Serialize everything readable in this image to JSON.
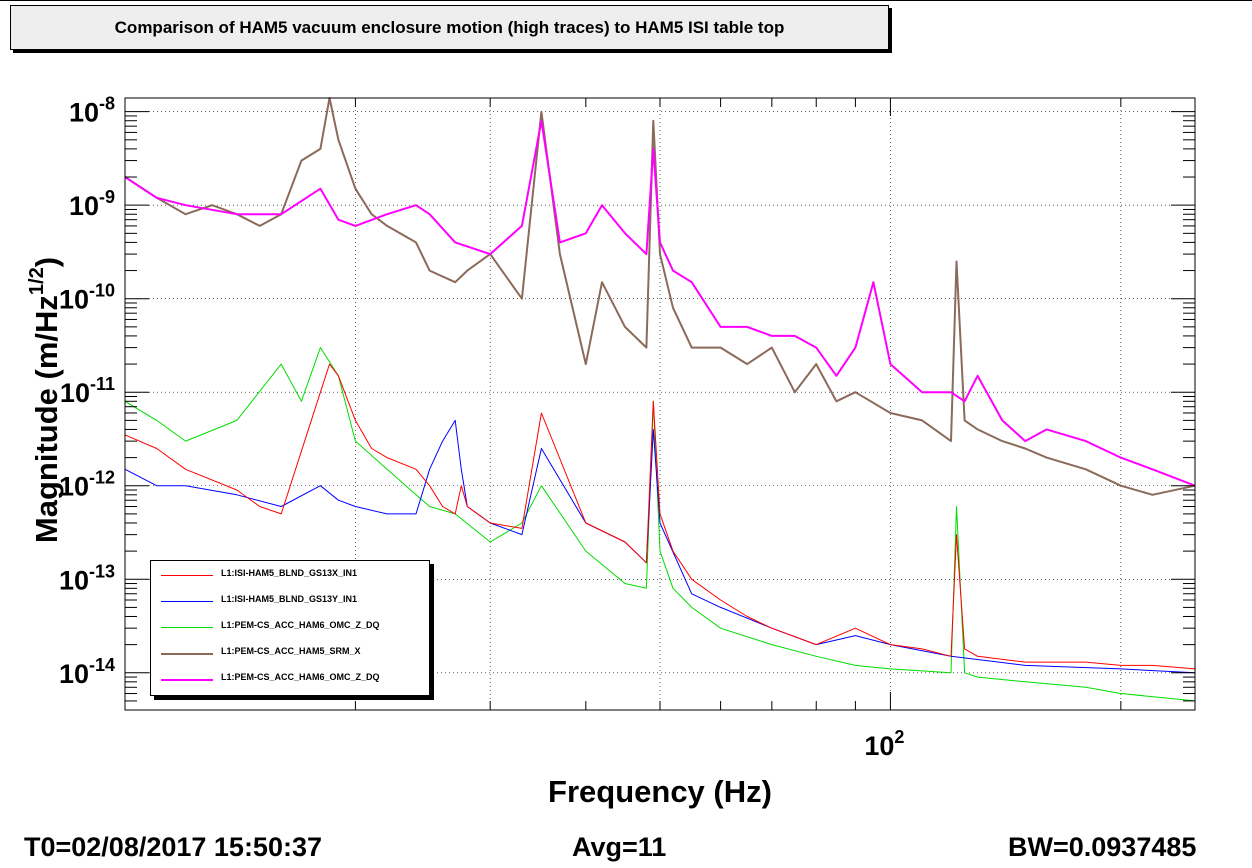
{
  "title": "Comparison of HAM5 vacuum enclosure motion (high traces) to HAM5 ISI table top",
  "footer": {
    "t0": "T0=02/08/2017 15:50:37",
    "avg": "Avg=11",
    "bw": "BW=0.0937485"
  },
  "chart_data": {
    "type": "line",
    "title": "Comparison of HAM5 vacuum enclosure motion (high traces) to HAM5 ISI table top",
    "xlabel": "Frequency (Hz)",
    "ylabel": "Magnitude (m/Hz^{1/2})",
    "xscale": "log",
    "yscale": "log",
    "xlim": [
      10,
      250
    ],
    "ylim": [
      4e-15,
      1.4e-08
    ],
    "grid": true,
    "legend_position": "bottom-left",
    "x_tick_labels": [
      {
        "value": 100,
        "label": "10",
        "sup": "2"
      }
    ],
    "y_tick_labels": [
      {
        "value": 1e-08,
        "label": "10",
        "sup": "-8"
      },
      {
        "value": 1e-09,
        "label": "10",
        "sup": "-9"
      },
      {
        "value": 1e-10,
        "label": "10",
        "sup": "-10"
      },
      {
        "value": 1e-11,
        "label": "10",
        "sup": "-11"
      },
      {
        "value": 1e-12,
        "label": "10",
        "sup": "-12"
      },
      {
        "value": 1e-13,
        "label": "10",
        "sup": "-13"
      },
      {
        "value": 1e-14,
        "label": "10",
        "sup": "-14"
      }
    ],
    "series": [
      {
        "name": "L1:ISI-HAM5_BLND_GS13X_IN1",
        "color": "#ff0000",
        "line_width": 1,
        "x": [
          10,
          11,
          12,
          14,
          15,
          16,
          18,
          18.5,
          19,
          20,
          21,
          22,
          24,
          25,
          26,
          27,
          27.5,
          28,
          30,
          33,
          35,
          40,
          45,
          48,
          49,
          50,
          52,
          55,
          60,
          65,
          70,
          80,
          90,
          100,
          110,
          120,
          122,
          125,
          130,
          150,
          180,
          200,
          220,
          250
        ],
        "y": [
          3.5e-12,
          2.5e-12,
          1.5e-12,
          9e-13,
          6e-13,
          5e-13,
          1e-11,
          2e-11,
          1.5e-11,
          5e-12,
          2.5e-12,
          2e-12,
          1.5e-12,
          1e-12,
          6e-13,
          5e-13,
          1e-12,
          6e-13,
          4e-13,
          3.5e-13,
          6e-12,
          4e-13,
          2.5e-13,
          1.5e-13,
          8e-12,
          5e-13,
          2e-13,
          1e-13,
          6e-14,
          4e-14,
          3e-14,
          2e-14,
          3e-14,
          2e-14,
          1.8e-14,
          1.5e-14,
          3e-13,
          1.8e-14,
          1.5e-14,
          1.3e-14,
          1.3e-14,
          1.2e-14,
          1.2e-14,
          1.1e-14
        ]
      },
      {
        "name": "L1:ISI-HAM5_BLND_GS13Y_IN1",
        "color": "#0000ff",
        "line_width": 1,
        "x": [
          10,
          11,
          12,
          14,
          16,
          18,
          19,
          20,
          22,
          24,
          25,
          26,
          27,
          27.5,
          28,
          30,
          33,
          35,
          40,
          45,
          48,
          49,
          50,
          55,
          60,
          70,
          80,
          90,
          100,
          120,
          150,
          200,
          250
        ],
        "y": [
          1.5e-12,
          1e-12,
          1e-12,
          8e-13,
          6e-13,
          1e-12,
          7e-13,
          6e-13,
          5e-13,
          5e-13,
          1.5e-12,
          3e-12,
          5e-12,
          1.5e-12,
          6e-13,
          4e-13,
          3e-13,
          2.5e-12,
          4e-13,
          2.5e-13,
          1.5e-13,
          4e-12,
          4e-13,
          7e-14,
          5e-14,
          3e-14,
          2e-14,
          2.5e-14,
          2e-14,
          1.5e-14,
          1.2e-14,
          1.1e-14,
          1e-14
        ]
      },
      {
        "name": "L1:PEM-CS_ACC_HAM6_OMC_Z_DQ",
        "color": "#00dd00",
        "line_width": 1,
        "x": [
          10,
          11,
          12,
          14,
          16,
          17,
          18,
          19,
          20,
          22,
          24,
          25,
          27,
          30,
          33,
          35,
          40,
          45,
          48,
          49,
          50,
          52,
          55,
          60,
          70,
          80,
          90,
          100,
          120,
          122,
          125,
          130,
          150,
          180,
          200,
          250
        ],
        "y": [
          8e-12,
          5e-12,
          3e-12,
          5e-12,
          2e-11,
          8e-12,
          3e-11,
          1.5e-11,
          3e-12,
          1.5e-12,
          8e-13,
          6e-13,
          5e-13,
          2.5e-13,
          4e-13,
          1e-12,
          2e-13,
          9e-14,
          8e-14,
          8e-12,
          2e-13,
          8e-14,
          5e-14,
          3e-14,
          2e-14,
          1.5e-14,
          1.2e-14,
          1.1e-14,
          1e-14,
          6e-13,
          1e-14,
          9e-15,
          8e-15,
          7e-15,
          6e-15,
          5e-15
        ]
      },
      {
        "name": "L1:PEM-CS_ACC_HAM5_SRM_X",
        "color": "#8b6a5a",
        "line_width": 2,
        "x": [
          10,
          11,
          12,
          13,
          14,
          15,
          16,
          17,
          18,
          18.5,
          19,
          20,
          21,
          22,
          24,
          25,
          27,
          28,
          30,
          33,
          35,
          37,
          40,
          42,
          45,
          48,
          49,
          50,
          52,
          55,
          60,
          65,
          70,
          75,
          80,
          85,
          90,
          100,
          110,
          120,
          122,
          125,
          130,
          140,
          150,
          160,
          180,
          200,
          220,
          250
        ],
        "y": [
          2e-09,
          1.2e-09,
          8e-10,
          1e-09,
          8e-10,
          6e-10,
          8e-10,
          3e-09,
          4e-09,
          1.4e-08,
          5e-09,
          1.5e-09,
          8e-10,
          6e-10,
          4e-10,
          2e-10,
          1.5e-10,
          2e-10,
          3e-10,
          1e-10,
          1e-08,
          3e-10,
          2e-11,
          1.5e-10,
          5e-11,
          3e-11,
          8e-09,
          3e-10,
          8e-11,
          3e-11,
          3e-11,
          2e-11,
          3e-11,
          1e-11,
          2e-11,
          8e-12,
          1e-11,
          6e-12,
          5e-12,
          3e-12,
          2.5e-10,
          5e-12,
          4e-12,
          3e-12,
          2.5e-12,
          2e-12,
          1.5e-12,
          1e-12,
          8e-13,
          1e-12
        ]
      },
      {
        "name": "L1:PEM-CS_ACC_HAM6_OMC_Z_DQ",
        "color": "#ff00ff",
        "line_width": 2,
        "x": [
          10,
          11,
          12,
          14,
          16,
          18,
          19,
          20,
          22,
          24,
          25,
          27,
          30,
          33,
          35,
          37,
          40,
          42,
          45,
          48,
          49,
          50,
          52,
          55,
          60,
          65,
          70,
          75,
          80,
          85,
          90,
          95,
          100,
          110,
          120,
          125,
          130,
          140,
          150,
          160,
          180,
          200,
          220,
          250
        ],
        "y": [
          2e-09,
          1.2e-09,
          1e-09,
          8e-10,
          8e-10,
          1.5e-09,
          7e-10,
          6e-10,
          8e-10,
          1e-09,
          8e-10,
          4e-10,
          3e-10,
          6e-10,
          8e-09,
          4e-10,
          5e-10,
          1e-09,
          5e-10,
          3e-10,
          4e-09,
          4e-10,
          2e-10,
          1.5e-10,
          5e-11,
          5e-11,
          4e-11,
          4e-11,
          3e-11,
          1.5e-11,
          3e-11,
          1.5e-10,
          2e-11,
          1e-11,
          1e-11,
          8e-12,
          1.5e-11,
          5e-12,
          3e-12,
          4e-12,
          3e-12,
          2e-12,
          1.5e-12,
          1e-12
        ]
      }
    ]
  }
}
